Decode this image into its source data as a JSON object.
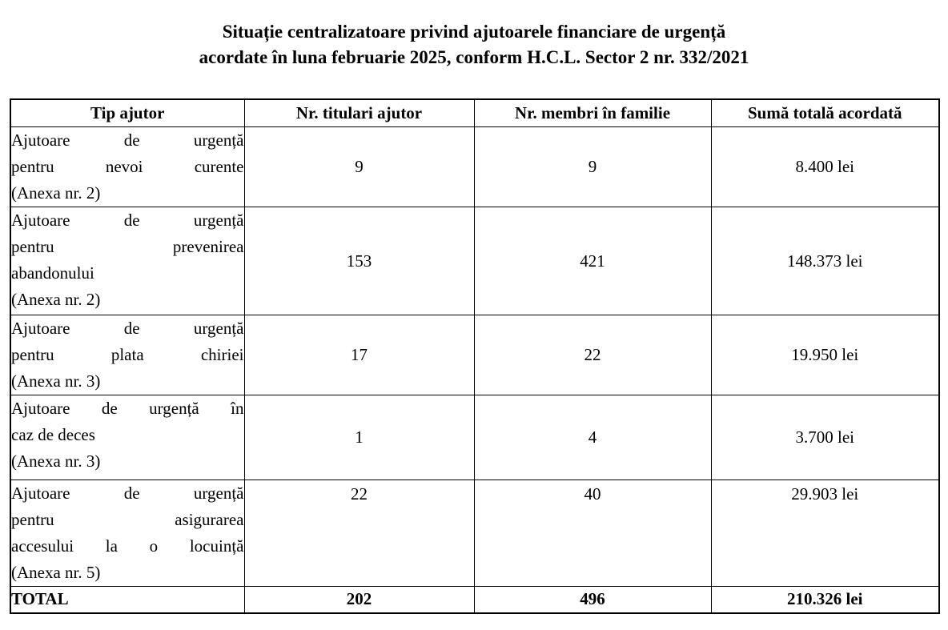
{
  "page": {
    "title_line1": "Situație centralizatoare privind ajutoarele financiare de urgență",
    "title_line2": "acordate în luna februarie 2025, conform H.C.L. Sector 2 nr. 332/2021"
  },
  "table": {
    "headers": [
      "Tip ajutor",
      "Nr. titulari ajutor",
      "Nr. membri în familie",
      "Sumă totală acordată"
    ],
    "rows": [
      {
        "type_lines": [
          {
            "text": "Ajutoare de urgență",
            "justify": true
          },
          {
            "text": "pentru nevoi curente",
            "justify": true
          },
          {
            "text": "(Anexa nr. 2)",
            "justify": false
          }
        ],
        "titulari": "9",
        "membri": "9",
        "suma": "8.400 lei"
      },
      {
        "type_lines": [
          {
            "text": "Ajutoare de urgență",
            "justify": true
          },
          {
            "text": "pentru prevenirea",
            "justify": true
          },
          {
            "text": "abandonului",
            "justify": false
          },
          {
            "text": "(Anexa nr. 2)",
            "justify": false
          }
        ],
        "titulari": "153",
        "membri": "421",
        "suma": "148.373 lei"
      },
      {
        "type_lines": [
          {
            "text": "Ajutoare de urgență",
            "justify": true
          },
          {
            "text": "pentru plata chiriei",
            "justify": true
          },
          {
            "text": "(Anexa nr. 3)",
            "justify": false
          }
        ],
        "titulari": "17",
        "membri": "22",
        "suma": "19.950 lei"
      },
      {
        "type_lines": [
          {
            "text": "Ajutoare de urgență în",
            "justify": true
          },
          {
            "text": "caz de deces",
            "justify": false
          },
          {
            "text": "(Anexa nr. 3)",
            "justify": false
          }
        ],
        "titulari": "1",
        "membri": "4",
        "suma": "3.700 lei"
      },
      {
        "type_lines": [
          {
            "text": "Ajutoare de urgență",
            "justify": true
          },
          {
            "text": "pentru asigurarea",
            "justify": true
          },
          {
            "text": "accesului la o locuință",
            "justify": true
          },
          {
            "text": "(Anexa nr. 5)",
            "justify": false
          }
        ],
        "titulari": "22",
        "membri": "40",
        "suma": "29.903 lei"
      }
    ],
    "total_row": {
      "label": "TOTAL",
      "titulari": "202",
      "membri": "496",
      "suma": "210.326 lei"
    }
  },
  "colors": {
    "text": "#000000",
    "border": "#000000",
    "background": "#ffffff"
  }
}
